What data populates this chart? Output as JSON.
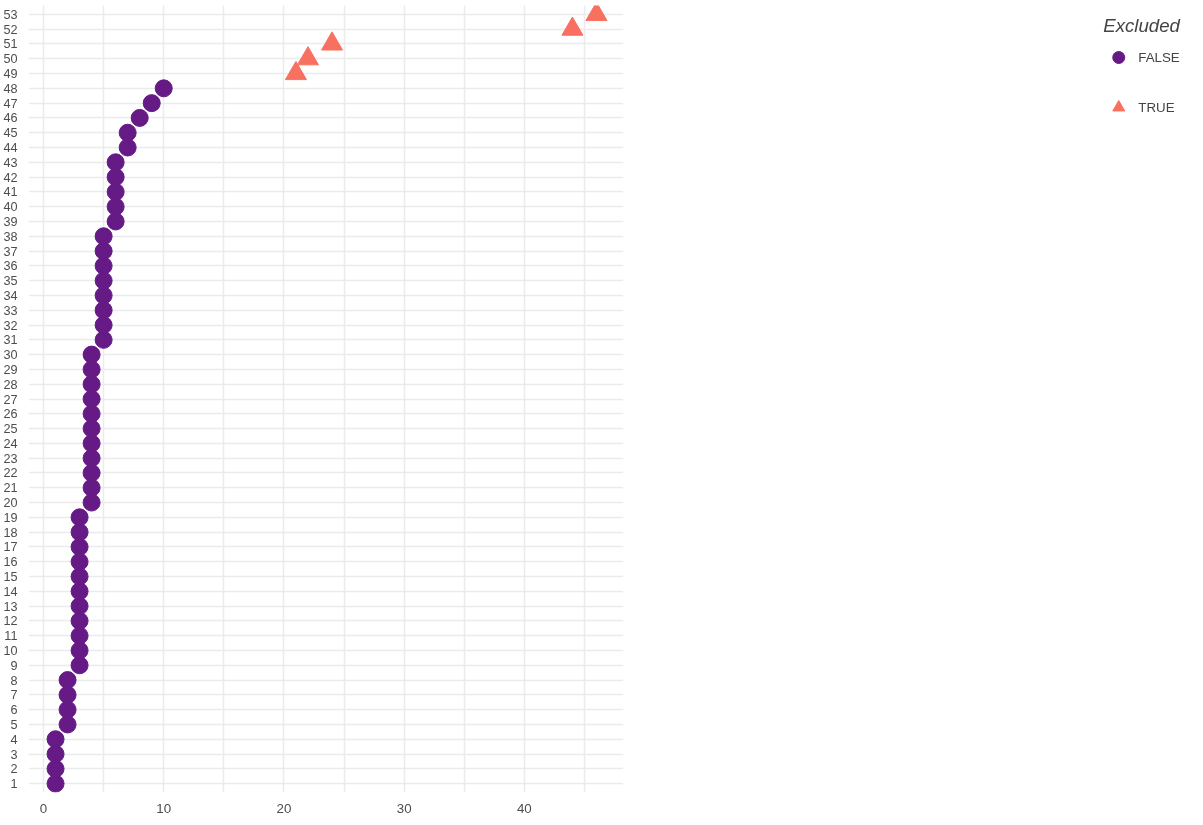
{
  "chart_data": {
    "type": "scatter",
    "legend_title": "Excluded",
    "legend": "right",
    "grid": true,
    "xlim": [
      -1.25,
      48.25
    ],
    "ylim": [
      0.4,
      53.6
    ],
    "xticks": [
      0,
      {
        "value": 5,
        "label": null
      },
      10,
      {
        "value": 15,
        "label": null
      },
      20,
      {
        "value": 25,
        "label": null
      },
      30,
      {
        "value": 35,
        "label": null
      },
      40,
      {
        "value": 45,
        "label": null
      }
    ],
    "yticks": [
      1,
      2,
      3,
      4,
      5,
      6,
      7,
      8,
      9,
      10,
      11,
      12,
      13,
      14,
      15,
      16,
      17,
      18,
      19,
      20,
      21,
      22,
      23,
      24,
      25,
      26,
      27,
      28,
      29,
      30,
      31,
      32,
      33,
      34,
      35,
      36,
      37,
      38,
      39,
      40,
      41,
      42,
      43,
      44,
      45,
      46,
      47,
      48,
      49,
      50,
      51,
      52,
      53
    ],
    "series": [
      {
        "name": "FALSE",
        "color": "#661a85",
        "marker": "circle",
        "x": [
          1,
          1,
          1,
          1,
          2,
          2,
          2,
          2,
          3,
          3,
          3,
          3,
          3,
          3,
          3,
          3,
          3,
          3,
          3,
          4,
          4,
          4,
          4,
          4,
          4,
          4,
          4,
          4,
          4,
          4,
          5,
          5,
          5,
          5,
          5,
          5,
          5,
          5,
          6,
          6,
          6,
          6,
          6,
          7,
          7,
          8,
          9,
          10
        ],
        "values": [
          1,
          2,
          3,
          4,
          5,
          6,
          7,
          8,
          9,
          10,
          11,
          12,
          13,
          14,
          15,
          16,
          17,
          18,
          19,
          20,
          21,
          22,
          23,
          24,
          25,
          26,
          27,
          28,
          29,
          30,
          31,
          32,
          33,
          34,
          35,
          36,
          37,
          38,
          39,
          40,
          41,
          42,
          43,
          44,
          45,
          46,
          47,
          48
        ]
      },
      {
        "name": "TRUE",
        "color": "#f8705f",
        "marker": "triangle",
        "x": [
          21,
          22,
          24,
          44,
          46
        ],
        "values": [
          49,
          50,
          51,
          52,
          53
        ]
      }
    ]
  }
}
